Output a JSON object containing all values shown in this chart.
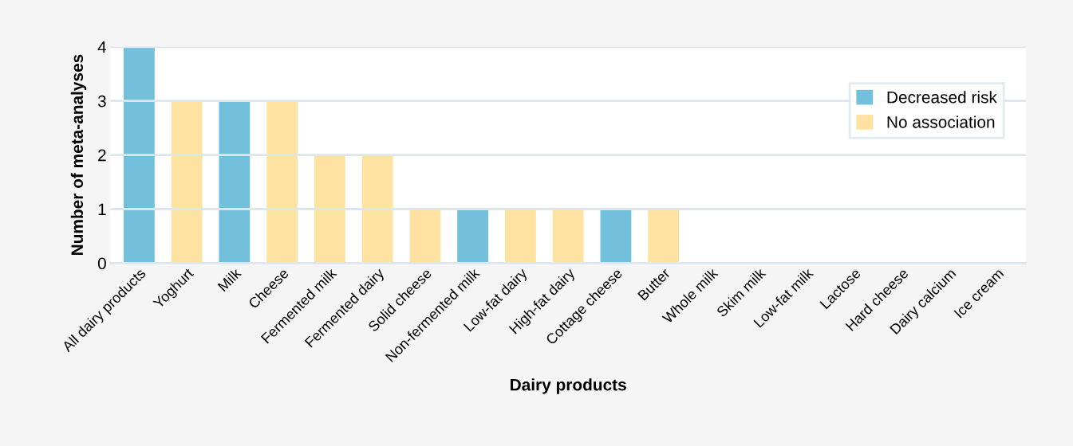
{
  "chart_data": {
    "type": "bar",
    "xlabel": "Dairy products",
    "ylabel": "Number of meta-analyses",
    "categories": [
      "All dairy products",
      "Yoghurt",
      "Milk",
      "Cheese",
      "Fermented milk",
      "Fermented dairy",
      "Solid cheese",
      "Non-fermented milk",
      "Low-fat dairy",
      "High-fat dairy",
      "Cottage cheese",
      "Butter",
      "Whole milk",
      "Skim milk",
      "Low-fat milk",
      "Lactose",
      "Hard cheese",
      "Dairy calcium",
      "Ice cream"
    ],
    "series": [
      {
        "name": "Decreased risk",
        "color": "#73c0dc",
        "values": [
          4,
          null,
          3,
          null,
          null,
          null,
          null,
          1,
          null,
          null,
          1,
          null,
          0,
          0,
          0,
          0,
          0,
          0,
          0
        ]
      },
      {
        "name": "No association",
        "color": "#fde2a2",
        "values": [
          null,
          3,
          null,
          3,
          2,
          2,
          1,
          null,
          1,
          1,
          null,
          1,
          0,
          0,
          0,
          0,
          0,
          0,
          0
        ]
      }
    ],
    "ylim": [
      0,
      4
    ],
    "yticks": [
      0,
      1,
      2,
      3,
      4
    ],
    "grid": "y",
    "legend": "top right"
  }
}
